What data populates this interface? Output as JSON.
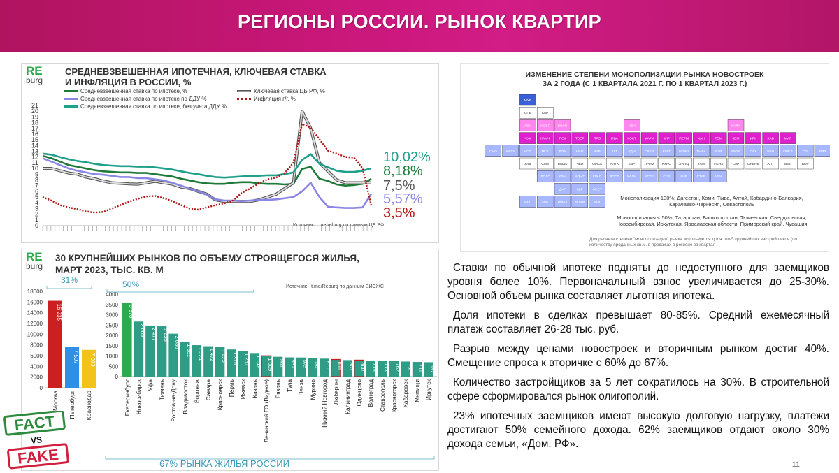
{
  "header": {
    "title": "РЕГИОНЫ РОССИИ.  РЫНОК КВАРТИР"
  },
  "logo": {
    "re": "RE",
    "burg": "burg"
  },
  "line_panel": {
    "title_line1": "СРЕДНЕВЗВЕШЕННАЯ ИПОТЕЧНАЯ, КЛЮЧЕВАЯ СТАВКА",
    "title_line2": "И ИНФЛЯЦИЯ В РОССИИ, %",
    "source": "Источник: t.me/reburg по данным ЦБ РФ",
    "end_labels": [
      "10,02%",
      "8,18%",
      "7,5%",
      "5,57%",
      "3,5%"
    ]
  },
  "bar_panel": {
    "title_line1": "30 КРУПНЕЙШИХ РЫНКОВ ПО ОБЪЕМУ СТРОЯЩЕГОСЯ ЖИЛЬЯ,",
    "title_line2": "МАРТ 2023, ТЫС. КВ. М",
    "source": "Источник - t.me/Reburg по данным ЕИСЖС",
    "pct_left": "31%",
    "pct_right": "50%",
    "footer": "67% РЫНКА ЖИЛЬЯ РОССИИ"
  },
  "map_panel": {
    "title_line1": "ИЗМЕНЕНИЕ СТЕПЕНИ МОНОПОЛИЗАЦИИ РЫНКА НОВОСТРОЕК",
    "title_line2": "ЗА 2 ГОДА (С 1 КВАРТАЛА 2021 Г. ПО 1 КВАРТАЛ 2023 Г.)",
    "note1": "Монополизация 100%: Дагестан, Коми, Тыва, Алтай, Кабардино-Балкария, Карачаево-Черкесия, Севастополь",
    "note2": "Монополизация < 50%: Татарстан, Башкортостан, Тюменская, Свердловская, Новосибирская, Иркутская, Ярославская области, Приморский край, Чувашия",
    "footnote": "Для расчета степени \"монополизации\" рынка используется доля топ-5 крупнейших застройщиков (по количеству проданных кв.м. в продажах в регионе за квартал",
    "cells": [
      "МУР",
      "СПБ",
      "КАР",
      "ЛЕН",
      "НОВГ",
      "ВОЛО",
      "НЕН",
      "КАЛИ",
      "ЧУК",
      "КАМЧ",
      "ПСК",
      "ТВЕР",
      "ЯРО",
      "ИВА",
      "КОСТ",
      "МАРИ",
      "КИР",
      "ПЕРМ",
      "ХАН",
      "ТОМ",
      "КЕМ",
      "ИРК",
      "ХАБ",
      "МАГ",
      "СМО",
      "КАЛУ",
      "МОС",
      "МСК",
      "ВЛА",
      "НИЖ",
      "ЧУВ",
      "ТАТ",
      "УДМ",
      "СВЕР",
      "КУРГ",
      "НОВО",
      "ТЫВА",
      "БУР",
      "АМУР",
      "САХ",
      "БРЯ",
      "ОРЕЛ",
      "ТУЛ",
      "РЯЗ",
      "МОРД",
      "УЛЬ",
      "САМ",
      "БАШК",
      "ЧЕЛ",
      "ОМСК",
      "АЛТК",
      "ЕВР",
      "ПРИМ",
      "КУРС",
      "ЛИПЦ",
      "ТАМ",
      "ПЕНЗ",
      "САР",
      "ОРЕНБ",
      "АЛТ",
      "БЕЛ",
      "ВОР",
      "ВОЛГ",
      "КРЫ",
      "АДЫГ",
      "КРАС",
      "РОСТ",
      "КАЛМ",
      "АСТР",
      "СЕВ",
      "КЧР",
      "СТАВ",
      "ЧЕЧ",
      "ДАГ",
      "КБР",
      "ОСЕТ",
      "ИНГ",
      "КРА",
      "ЯМАЛ",
      "КОМИ",
      "АРХ"
    ]
  },
  "body_text": {
    "p1": "Ставки по обычной ипотеке подняты до недоступного для заемщиков уровня более 10%. Первоначальный взнос увеличивается до 25-30%. Основной объем рынка составляет льготная ипотека.",
    "p2": "Доля ипотеки в сделках превышает 80-85%. Средний ежемесячный платеж составляет 26-28 тыс. руб.",
    "p3": "Разрыв между ценами новостроек и вторичным рынком достиг 40%. Смещение  спроса к вторичке с 60% до 67%.",
    "p4": "Количество застройщиков за 5 лет сократилось на 30%. В строительной сфере сформировался рынок олигополий.",
    "p5": "23% ипотечных заемщиков имеют высокую долговую нагрузку, платежи достигают 50% семейного дохода. 62% заемщиков отдают около 30% дохода семьи, «Дом. РФ»."
  },
  "fact_fake": {
    "fact": "FACT",
    "vs": "VS",
    "fake": "FAKE"
  },
  "page_number": "11",
  "chart_data": [
    {
      "type": "line",
      "title": "СРЕДНЕВЗВЕШЕННАЯ ИПОТЕЧНАЯ, КЛЮЧЕВАЯ СТАВКА И ИНФЛЯЦИЯ В РОССИИ, %",
      "ylim": [
        0,
        21
      ],
      "yticks": [
        0,
        1,
        2,
        3,
        4,
        5,
        6,
        7,
        8,
        9,
        10,
        11,
        12,
        13,
        14,
        15,
        16,
        17,
        18,
        19,
        20,
        21
      ],
      "series": [
        {
          "name": "Средневзвешенная ставка по ипотеке, %",
          "color": "#1f7a3a",
          "dash": "",
          "values": [
            12.2,
            11.8,
            11.2,
            10.6,
            10.3,
            10.0,
            9.7,
            9.5,
            9.4,
            9.3,
            9.3,
            9.2,
            9.2,
            9.0,
            8.8,
            8.6,
            8.2,
            7.9,
            7.6,
            7.4,
            7.3,
            7.3,
            7.5,
            7.6,
            7.6,
            7.4,
            7.3,
            7.3,
            7.2,
            7.3,
            9.9,
            10.3,
            8.2,
            7.8,
            7.2,
            7.0,
            7.1,
            7.3,
            8.18
          ]
        },
        {
          "name": "Ключевая ставка ЦБ РФ, %",
          "color": "#9a9a9a",
          "dash": "",
          "values": [
            10.0,
            10.0,
            9.6,
            9.2,
            9.0,
            8.5,
            8.2,
            7.8,
            7.5,
            7.4,
            7.3,
            7.25,
            7.5,
            7.75,
            7.5,
            7.25,
            6.75,
            6.5,
            6.0,
            5.5,
            4.5,
            4.25,
            4.25,
            4.25,
            4.25,
            4.5,
            5.0,
            5.5,
            6.5,
            7.5,
            20.0,
            17.0,
            11.0,
            9.5,
            8.0,
            7.5,
            7.5,
            7.5,
            7.5
          ]
        },
        {
          "name": "Средневзвешенная ставка по ипотеке по ДДУ %",
          "color": "#8a86e6",
          "dash": "",
          "values": [
            11.8,
            11.2,
            10.6,
            10.0,
            9.6,
            9.3,
            9.0,
            8.9,
            8.7,
            8.5,
            8.5,
            8.3,
            8.3,
            8.1,
            7.9,
            7.5,
            7.0,
            6.5,
            6.0,
            5.4,
            4.6,
            4.4,
            4.4,
            4.3,
            4.4,
            4.5,
            4.5,
            4.6,
            4.8,
            5.0,
            6.0,
            7.5,
            5.0,
            3.3,
            3.2,
            3.1,
            3.1,
            3.2,
            5.57
          ]
        },
        {
          "name": "Средневзвешенная ставка по ипотеке, без учета ДДУ %",
          "color": "#1fa08a",
          "dash": "",
          "values": [
            12.6,
            12.4,
            12.0,
            11.6,
            11.3,
            11.1,
            10.8,
            10.6,
            10.5,
            10.4,
            10.4,
            10.3,
            10.3,
            10.2,
            10.0,
            9.8,
            9.5,
            9.2,
            9.0,
            8.7,
            8.5,
            8.4,
            8.5,
            8.6,
            8.7,
            8.7,
            8.8,
            8.8,
            9.0,
            9.3,
            11.5,
            12.5,
            10.8,
            10.2,
            9.6,
            9.4,
            9.4,
            9.6,
            10.02
          ]
        },
        {
          "name": "Инфляция г/г,  %",
          "color": "#b01414",
          "dash": "2 2",
          "values": [
            5.0,
            4.4,
            3.6,
            3.2,
            2.9,
            2.5,
            2.3,
            2.4,
            3.0,
            3.6,
            4.2,
            4.7,
            5.1,
            5.2,
            4.8,
            4.3,
            3.6,
            3.0,
            2.8,
            3.2,
            3.6,
            3.9,
            4.4,
            5.7,
            6.5,
            7.4,
            8.1,
            8.4,
            9.2,
            11.0,
            17.8,
            17.1,
            15.1,
            13.1,
            12.6,
            12.0,
            11.9,
            10.0,
            3.5
          ]
        }
      ],
      "end_labels": [
        {
          "text": "10,02%",
          "color": "#1fa08a"
        },
        {
          "text": "8,18%",
          "color": "#1f7a3a"
        },
        {
          "text": "7,5%",
          "color": "#555555"
        },
        {
          "text": "5,57%",
          "color": "#8a86e6"
        },
        {
          "text": "3,5%",
          "color": "#b01414"
        }
      ]
    },
    {
      "type": "bar",
      "title": "30 КРУПНЕЙШИХ РЫНКОВ ПО ОБЪЕМУ СТРОЯЩЕГОСЯ ЖИЛЬЯ, МАРТ 2023, ТЫС. КВ. М",
      "panel": "left",
      "ylim": [
        0,
        18000
      ],
      "yticks": [
        0,
        2000,
        4000,
        6000,
        8000,
        10000,
        12000,
        14000,
        16000,
        18000
      ],
      "categories": [
        "Москва",
        "Петербург",
        "Краснодар"
      ],
      "values": [
        16235,
        7597,
        7073
      ],
      "labels": [
        "16 235",
        "7 597",
        "7 073"
      ],
      "colors": [
        "#cc1f1f",
        "#2e8fe6",
        "#f2c21d"
      ]
    },
    {
      "type": "bar",
      "panel": "right",
      "ylim": [
        0,
        4000
      ],
      "yticks": [
        0,
        500,
        1000,
        1500,
        2000,
        2500,
        3000,
        3500,
        4000
      ],
      "categories": [
        "Екатеринбург",
        "Новосибирск",
        "Уфа",
        "Тюмень",
        "Ростов-на-Дону",
        "Владивосток",
        "Воронеж",
        "Самара",
        "Красноярск",
        "Пермь",
        "Ижевск",
        "Казань",
        "Ленинский ГО (Видное)",
        "Рязань",
        "Тула",
        "Пенза",
        "Мурино",
        "Нижний Новгород",
        "Люберцы",
        "Калининград",
        "Одинцово",
        "Волгоград",
        "Ставрополь",
        "Красногорск",
        "Хабаровск",
        "Мытищи",
        "Иркутск"
      ],
      "values": [
        3578,
        2669,
        2477,
        2439,
        2080,
        1681,
        1524,
        1472,
        1425,
        1315,
        1251,
        1142,
        1009,
        961,
        931,
        925,
        892,
        871,
        831,
        801,
        800,
        775,
        773,
        762,
        730,
        711,
        697
      ],
      "labels": [
        "3 578",
        "2 669",
        "2 477",
        "2 439",
        "2 080",
        "1 681",
        "1 524",
        "1 472",
        "1 425",
        "1 315",
        "1 251",
        "1 142",
        "1 009",
        "961",
        "931",
        "925",
        "892",
        "871",
        "831",
        "801",
        "800",
        "775",
        "773",
        "762",
        "730",
        "711",
        "697"
      ]
    }
  ]
}
